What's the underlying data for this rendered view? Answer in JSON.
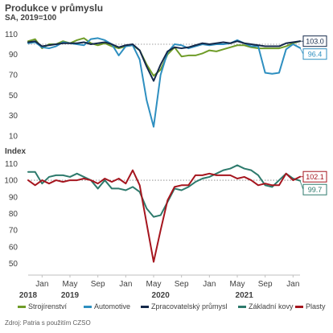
{
  "header": {
    "title": "Produkce v průmyslu",
    "subtitle": "SA, 2019=100"
  },
  "lower_panel": {
    "subtitle": "Index"
  },
  "source": "Zdroj: Patria s použitím CZSO",
  "colors": {
    "Strojírenství": "#6f9c28",
    "Automotive": "#2e8fc0",
    "Zpracovatelský průmysl": "#14294a",
    "Základní kovy": "#2d7a6c",
    "Plasty": "#a5151e",
    "axis": "#bfbfbf",
    "reference": "#808080"
  },
  "legend": [
    "Strojírenství",
    "Automotive",
    "Zpracovatelský průmysl",
    "Základní kovy",
    "Plasty"
  ],
  "x_axis": {
    "month_ticks": [
      {
        "label": "Jan",
        "date": "2019-01"
      },
      {
        "label": "May",
        "date": "2019-05"
      },
      {
        "label": "Sep",
        "date": "2019-09"
      },
      {
        "label": "Jan",
        "date": "2020-01"
      },
      {
        "label": "May",
        "date": "2020-05"
      },
      {
        "label": "Sep",
        "date": "2020-09"
      },
      {
        "label": "Jan",
        "date": "2021-01"
      },
      {
        "label": "May",
        "date": "2021-05"
      },
      {
        "label": "Sep",
        "date": "2021-09"
      },
      {
        "label": "Jan",
        "date": "2022-01"
      }
    ],
    "year_labels": [
      {
        "label": "2018",
        "date": "2018-11"
      },
      {
        "label": "2019",
        "date": "2019-05"
      },
      {
        "label": "2020",
        "date": "2020-06"
      },
      {
        "label": "2021",
        "date": "2021-06"
      }
    ]
  },
  "chart_data": [
    {
      "type": "line",
      "title": "Produkce v průmyslu",
      "subtitle": "SA, 2019=100",
      "ylim": [
        10,
        115
      ],
      "yticks": [
        10,
        30,
        50,
        70,
        90,
        110
      ],
      "reference_line": 100,
      "x": [
        "2018-11",
        "2018-12",
        "2019-01",
        "2019-02",
        "2019-03",
        "2019-04",
        "2019-05",
        "2019-06",
        "2019-07",
        "2019-08",
        "2019-09",
        "2019-10",
        "2019-11",
        "2019-12",
        "2020-01",
        "2020-02",
        "2020-03",
        "2020-04",
        "2020-05",
        "2020-06",
        "2020-07",
        "2020-08",
        "2020-09",
        "2020-10",
        "2020-11",
        "2020-12",
        "2021-01",
        "2021-02",
        "2021-03",
        "2021-04",
        "2021-05",
        "2021-06",
        "2021-07",
        "2021-08",
        "2021-09",
        "2021-10",
        "2021-11",
        "2021-12",
        "2022-01",
        "2022-02"
      ],
      "series": [
        {
          "name": "Strojírenství",
          "values": [
            103,
            105,
            96,
            100,
            100,
            103,
            101,
            104,
            106,
            101,
            99,
            101,
            98,
            96,
            98,
            99,
            94,
            80,
            69,
            75,
            90,
            97,
            88,
            89,
            89,
            91,
            94,
            93,
            95,
            97,
            99,
            99,
            97,
            96,
            96,
            96,
            96,
            98,
            101,
            103
          ]
        },
        {
          "name": "Automotive",
          "values": [
            101,
            102,
            97,
            96,
            98,
            102,
            101,
            100,
            99,
            105,
            106,
            104,
            100,
            89,
            98,
            99,
            85,
            45,
            19,
            70,
            92,
            100,
            99,
            96,
            98,
            100,
            99,
            100,
            100,
            101,
            104,
            101,
            98,
            98,
            72,
            71,
            72,
            95,
            100,
            96.4
          ]
        },
        {
          "name": "Zpracovatelský průmysl",
          "values": [
            102,
            103,
            98,
            99,
            100,
            101,
            101,
            101,
            102,
            100,
            101,
            102,
            100,
            97,
            99,
            100,
            94,
            78,
            64,
            80,
            93,
            97,
            96,
            97,
            99,
            101,
            100,
            101,
            102,
            101,
            103,
            101,
            100,
            99,
            98,
            98,
            98,
            101,
            102,
            103
          ]
        }
      ],
      "end_labels": [
        {
          "series": "Zpracovatelský průmysl",
          "text": "103.0"
        },
        {
          "series": "Automotive",
          "text": "96.4"
        }
      ]
    },
    {
      "type": "line",
      "title": "Index",
      "ylim": [
        45,
        115
      ],
      "yticks": [
        50,
        60,
        70,
        80,
        90,
        100,
        110
      ],
      "reference_line": 100,
      "x": [
        "2018-11",
        "2018-12",
        "2019-01",
        "2019-02",
        "2019-03",
        "2019-04",
        "2019-05",
        "2019-06",
        "2019-07",
        "2019-08",
        "2019-09",
        "2019-10",
        "2019-11",
        "2019-12",
        "2020-01",
        "2020-02",
        "2020-03",
        "2020-04",
        "2020-05",
        "2020-06",
        "2020-07",
        "2020-08",
        "2020-09",
        "2020-10",
        "2020-11",
        "2020-12",
        "2021-01",
        "2021-02",
        "2021-03",
        "2021-04",
        "2021-05",
        "2021-06",
        "2021-07",
        "2021-08",
        "2021-09",
        "2021-10",
        "2021-11",
        "2021-12",
        "2022-01",
        "2022-02"
      ],
      "series": [
        {
          "name": "Základní kovy",
          "values": [
            105,
            105,
            98,
            102,
            103,
            103,
            102,
            104,
            102,
            100,
            95,
            100,
            95,
            95,
            94,
            96,
            93,
            83,
            78,
            79,
            87,
            95,
            94,
            96,
            99,
            101,
            102,
            104,
            106,
            107,
            109,
            107,
            106,
            103,
            97,
            96,
            100,
            104,
            101,
            99.7
          ]
        },
        {
          "name": "Plasty",
          "values": [
            100,
            97,
            100,
            98,
            100,
            99,
            100,
            100,
            101,
            100,
            98,
            101,
            99,
            101,
            98,
            106,
            97,
            74,
            51,
            70,
            88,
            96,
            97,
            97,
            103,
            103,
            104,
            103,
            103,
            103,
            101,
            102,
            100,
            97,
            98,
            97,
            97,
            104,
            100,
            102.1
          ]
        }
      ],
      "end_labels": [
        {
          "series": "Plasty",
          "text": "102.1"
        },
        {
          "series": "Základní kovy",
          "text": "99.7"
        }
      ]
    }
  ]
}
